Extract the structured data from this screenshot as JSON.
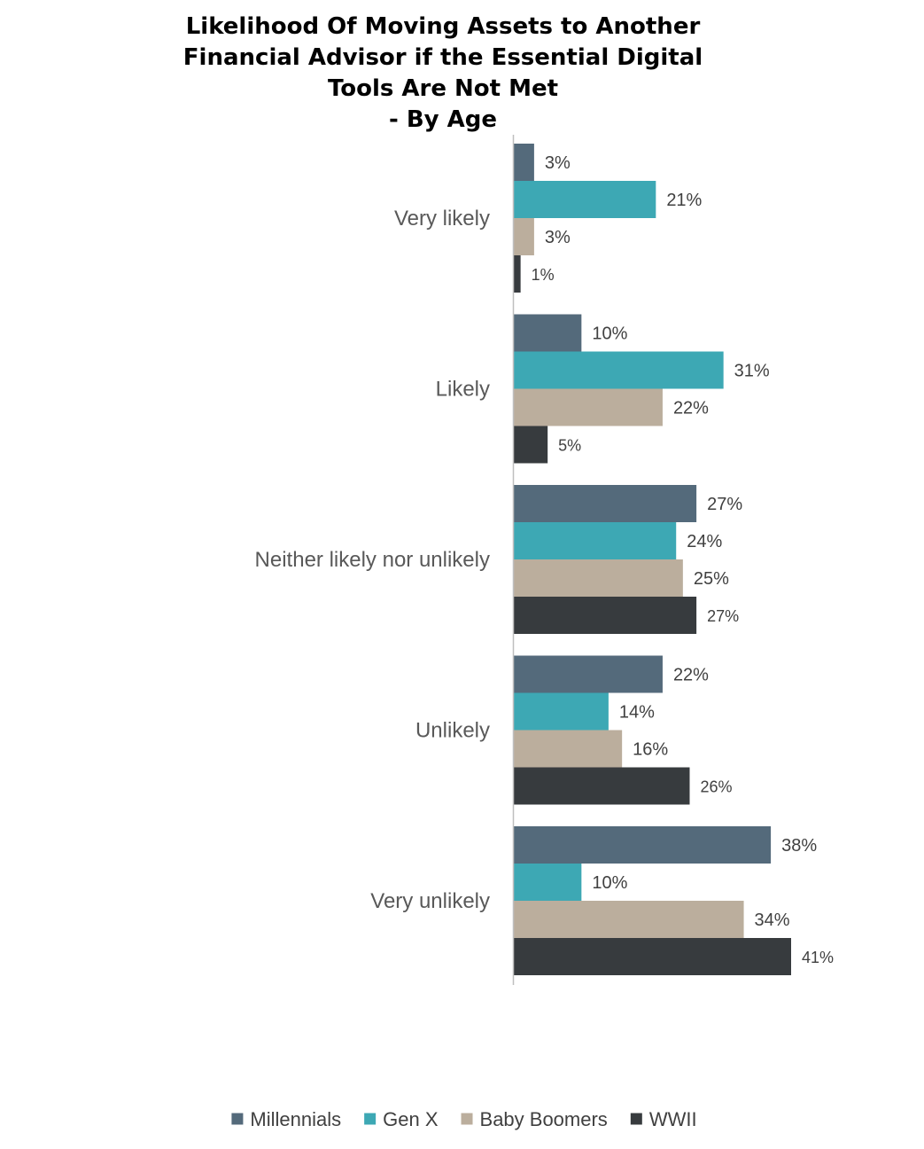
{
  "chart_data": {
    "type": "bar",
    "orientation": "horizontal",
    "title_lines": [
      "Likelihood Of Moving Assets to Another",
      "Financial Advisor if the Essential Digital",
      "Tools Are Not Met",
      "- By Age"
    ],
    "categories": [
      "Very likely",
      "Likely",
      "Neither likely nor unlikely",
      "Unlikely",
      "Very unlikely"
    ],
    "series": [
      {
        "name": "Millennials",
        "color": "#546a7b",
        "values": [
          3,
          10,
          27,
          22,
          38
        ]
      },
      {
        "name": "Gen X",
        "color": "#3da8b4",
        "values": [
          21,
          31,
          24,
          14,
          10
        ]
      },
      {
        "name": "Baby Boomers",
        "color": "#bbae9d",
        "values": [
          3,
          22,
          25,
          16,
          34
        ]
      },
      {
        "name": "WWII",
        "color": "#373b3e",
        "values": [
          1,
          5,
          27,
          26,
          41
        ]
      }
    ],
    "value_suffix": "%",
    "xlim": [
      0,
      41
    ],
    "grid": false,
    "legend_position": "bottom"
  }
}
